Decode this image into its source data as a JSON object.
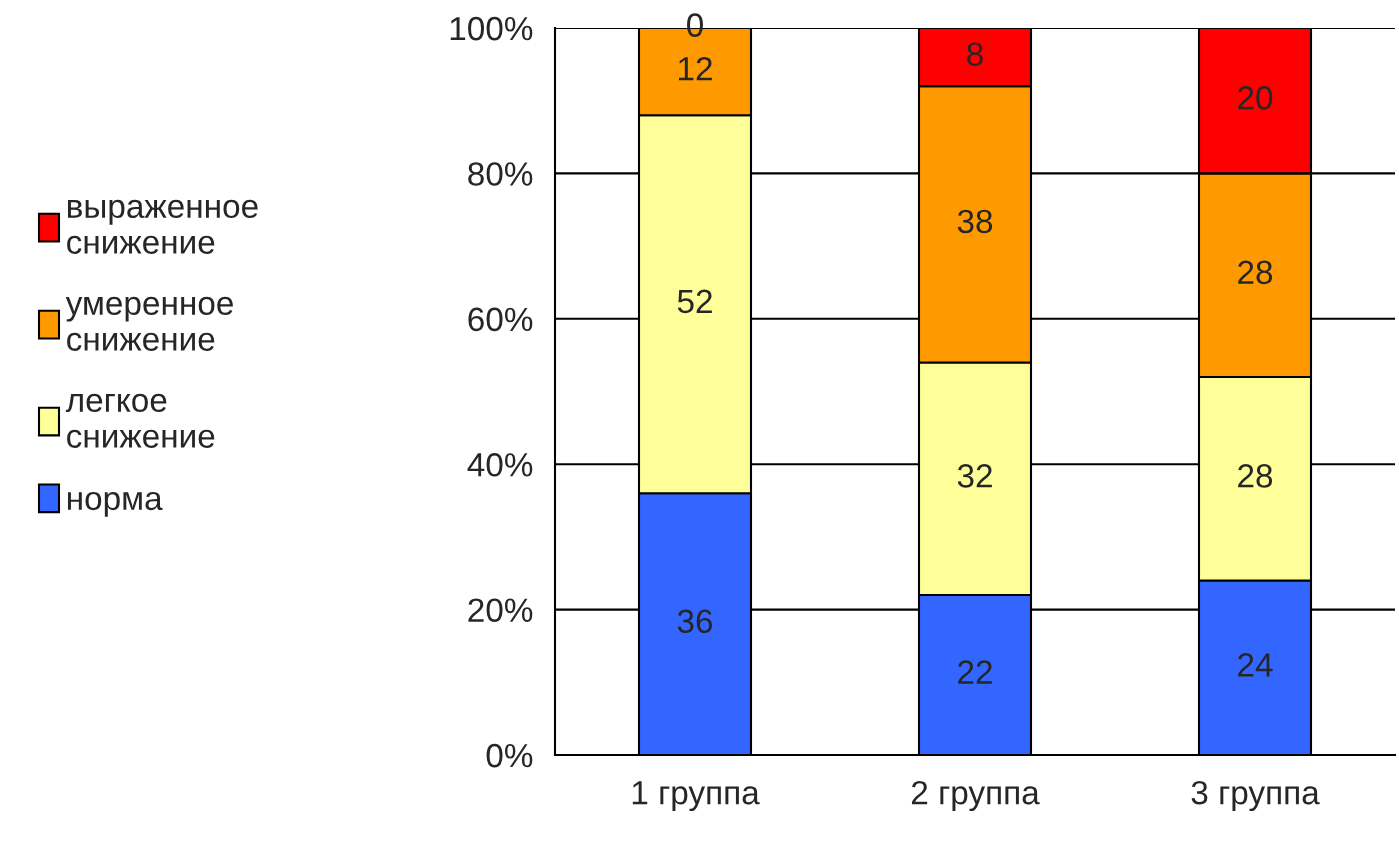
{
  "chart_data": {
    "type": "bar",
    "stacked": true,
    "categories": [
      "1 группа",
      "2 группа",
      "3 группа"
    ],
    "series": [
      {
        "name": "норма",
        "color": "#3366ff",
        "values": [
          36,
          22,
          24
        ]
      },
      {
        "name": "легкое\nснижение",
        "color": "#ffff99",
        "values": [
          52,
          32,
          28
        ]
      },
      {
        "name": "умеренное\nснижение",
        "color": "#ff9900",
        "values": [
          12,
          38,
          28
        ]
      },
      {
        "name": "выраженное\nснижение",
        "color": "#ff0000",
        "values": [
          0,
          8,
          20
        ]
      }
    ],
    "ylim": [
      0,
      100
    ],
    "yticks": [
      {
        "value": 0,
        "label": "0%"
      },
      {
        "value": 20,
        "label": "20%"
      },
      {
        "value": 40,
        "label": "40%"
      },
      {
        "value": 60,
        "label": "60%"
      },
      {
        "value": 80,
        "label": "80%"
      },
      {
        "value": 100,
        "label": "100%"
      }
    ],
    "grid": "y",
    "legend": "left",
    "data_labels": true
  }
}
